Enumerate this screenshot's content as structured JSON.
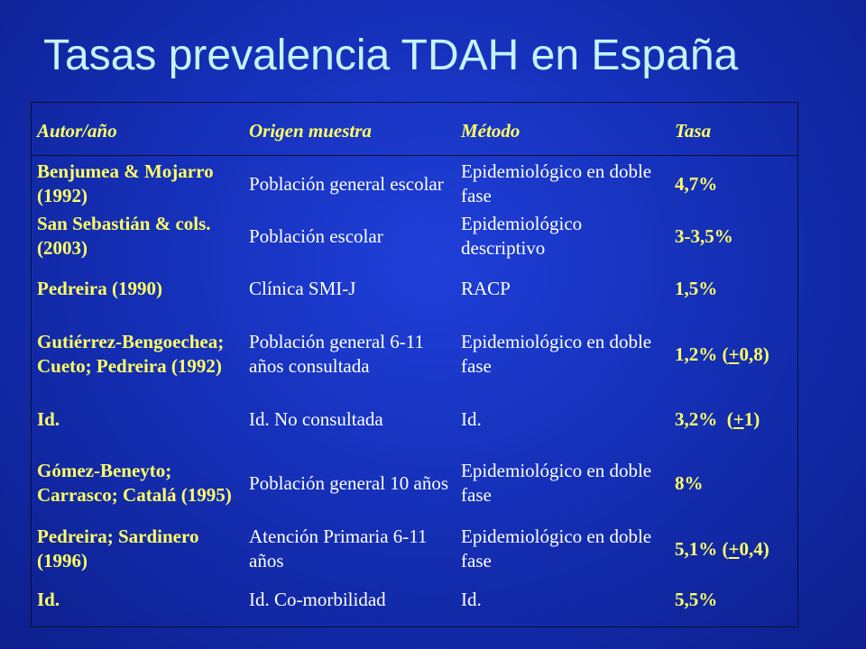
{
  "title": "Tasas prevalencia TDAH en España",
  "headers": {
    "author": "Autor/año",
    "origin": "Origen muestra",
    "method": "Método",
    "rate": "Tasa"
  },
  "rows": [
    {
      "author": "Benjumea & Mojarro (1992)",
      "origin": "Población general escolar",
      "method": "Epidemiológico en doble fase",
      "rate": "4,7%"
    },
    {
      "author": "San Sebastián & cols. (2003)",
      "origin": "Población escolar",
      "method": "Epidemiológico descriptivo",
      "rate": "3-3,5%"
    },
    {
      "author": "Pedreira (1990)",
      "origin": "Clínica SMI-J",
      "method": "RACP",
      "rate": "1,5%"
    },
    {
      "author": "Gutiérrez-Bengoechea; Cueto; Pedreira (1992)",
      "origin": "Población general 6-11 años consultada",
      "method": "Epidemiológico en doble fase",
      "rate_pre": "1,2% (",
      "rate_pm": "+",
      "rate_post": "0,8)"
    },
    {
      "author": "Id.",
      "origin": "Id. No consultada",
      "method": "Id.",
      "rate_pre": "3,2%  (",
      "rate_pm": "+",
      "rate_post": "1)"
    },
    {
      "author": "Gómez-Beneyto; Carrasco; Catalá (1995)",
      "origin": "Población general 10 años",
      "method": "Epidemiológico en doble fase",
      "rate": "8%"
    },
    {
      "author": "Pedreira; Sardinero (1996)",
      "origin": "Atención Primaria 6-11 años",
      "method": "Epidemiológico en doble fase",
      "rate_pre": "5,1% (",
      "rate_pm": "+",
      "rate_post": "0,4)"
    },
    {
      "author": "Id.",
      "origin": "Id. Co-morbilidad",
      "method": "Id.",
      "rate": "5,5%"
    }
  ]
}
